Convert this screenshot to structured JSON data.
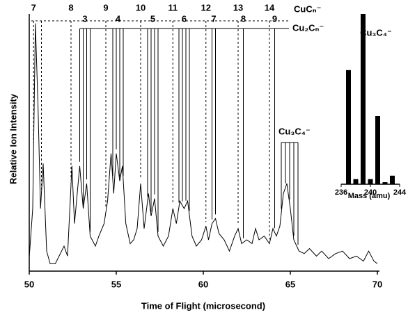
{
  "chart_data": [
    {
      "type": "line",
      "xlabel": "Time of Flight (microsecond)",
      "ylabel": "Relative Ion Intensity",
      "xlim": [
        50,
        70
      ],
      "xticks": [
        50,
        55,
        60,
        65,
        70
      ],
      "ylim": [
        0,
        100
      ],
      "color": "#000000",
      "x": [
        50.0,
        50.2,
        50.35,
        50.5,
        50.65,
        50.8,
        51.0,
        51.2,
        51.5,
        52.0,
        52.2,
        52.45,
        52.6,
        52.9,
        53.1,
        53.3,
        53.5,
        53.8,
        54.0,
        54.3,
        54.5,
        54.7,
        54.85,
        55.0,
        55.2,
        55.35,
        55.55,
        55.8,
        56.0,
        56.2,
        56.4,
        56.6,
        56.85,
        57.0,
        57.2,
        57.4,
        57.7,
        58.0,
        58.25,
        58.45,
        58.65,
        58.9,
        59.1,
        59.35,
        59.6,
        59.9,
        60.15,
        60.3,
        60.5,
        60.7,
        60.9,
        61.2,
        61.5,
        61.8,
        62.0,
        62.2,
        62.5,
        62.8,
        63.0,
        63.2,
        63.5,
        63.8,
        64.0,
        64.2,
        64.4,
        64.6,
        64.8,
        65.0,
        65.2,
        65.5,
        65.8,
        66.1,
        66.5,
        66.8,
        67.2,
        67.6,
        68.0,
        68.4,
        68.8,
        69.2,
        69.5,
        69.8,
        70.0
      ],
      "values": [
        5.5,
        25,
        99,
        67,
        25,
        43,
        8,
        3,
        3,
        10,
        6,
        42,
        19,
        42,
        25,
        35,
        14,
        10,
        14,
        19,
        28,
        47,
        31,
        47,
        36,
        42,
        19,
        11,
        12.5,
        17,
        35,
        17,
        31,
        22,
        29,
        14,
        10,
        14,
        25,
        19,
        28,
        25,
        28,
        14,
        10,
        12.5,
        18,
        12.5,
        19,
        21,
        15,
        12.5,
        8,
        14,
        17,
        11,
        12.5,
        11,
        17,
        12.5,
        14,
        11,
        17,
        14,
        18,
        31,
        35,
        25,
        12.5,
        8,
        7,
        9,
        6,
        8,
        5,
        7,
        8,
        5,
        6,
        4,
        8,
        4,
        3
      ],
      "annotations": [
        {
          "label": "CuCₙ⁻",
          "style": "dashed",
          "peaks": [
            {
              "label": "7",
              "x": [
                50.25,
                50.7
              ]
            },
            {
              "label": "8",
              "x": [
                52.4
              ]
            },
            {
              "label": "9",
              "x": [
                54.4
              ]
            },
            {
              "label": "10",
              "x": [
                56.4
              ]
            },
            {
              "label": "11",
              "x": [
                58.25
              ]
            },
            {
              "label": "12",
              "x": [
                60.15
              ]
            },
            {
              "label": "13",
              "x": [
                62.0
              ]
            },
            {
              "label": "14",
              "x": [
                63.8
              ]
            }
          ]
        },
        {
          "label": "Cu₂Cₙ⁻",
          "style": "solid",
          "peaks": [
            {
              "label": "3",
              "x": [
                52.9,
                53.1,
                53.3,
                53.5
              ]
            },
            {
              "label": "4",
              "x": [
                54.8,
                55.0,
                55.2,
                55.4
              ]
            },
            {
              "label": "5",
              "x": [
                56.8,
                57.0,
                57.2,
                57.4
              ]
            },
            {
              "label": "6",
              "x": [
                58.6,
                58.8,
                59.0,
                59.2
              ]
            },
            {
              "label": "7",
              "x": [
                60.5,
                60.7
              ]
            },
            {
              "label": "8",
              "x": [
                62.3
              ]
            },
            {
              "label": "9",
              "x": [
                64.1
              ]
            }
          ]
        },
        {
          "label": "Cu₃C₄⁻",
          "style": "solid",
          "peaks": [
            {
              "x": [
                64.48,
                64.72,
                64.96,
                65.2,
                65.44
              ]
            }
          ]
        }
      ]
    },
    {
      "type": "bar",
      "title": "Cu₃C₄⁻",
      "xlabel": "Mass (amu)",
      "x": [
        237,
        238,
        239,
        240,
        241,
        242,
        243
      ],
      "values": [
        67,
        3,
        100,
        3,
        40,
        1.2,
        5
      ],
      "xlim": [
        236,
        244
      ],
      "xticks": [
        236,
        240,
        244
      ],
      "ylim": [
        0,
        100
      ],
      "color": "#000000"
    }
  ]
}
